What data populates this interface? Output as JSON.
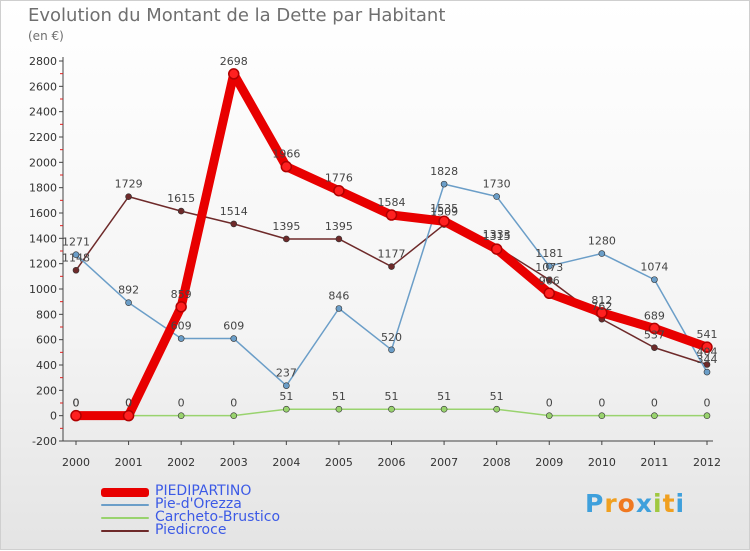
{
  "chart_data": {
    "type": "line",
    "title": "Evolution du Montant de la Dette par Habitant",
    "subtitle": "(en €)",
    "x": [
      "2000",
      "2001",
      "2002",
      "2003",
      "2004",
      "2005",
      "2006",
      "2007",
      "2008",
      "2009",
      "2010",
      "2011",
      "2012"
    ],
    "ylim": [
      -200,
      2800
    ],
    "yticks": [
      -200,
      0,
      200,
      400,
      600,
      800,
      1000,
      1200,
      1400,
      1600,
      1800,
      2000,
      2200,
      2400,
      2600,
      2800
    ],
    "grid": false,
    "legend_position": "bottom-left",
    "series": [
      {
        "name": "PIEDIPARTINO",
        "color": "#e80000",
        "values": [
          0,
          0,
          859,
          2698,
          1966,
          1776,
          1584,
          1535,
          1315,
          966,
          812,
          689,
          541
        ],
        "labels": [
          "0",
          "0",
          "859",
          "2698",
          "1966",
          "1776",
          "1584",
          "1535",
          "1315",
          "966",
          "812",
          "689",
          "541"
        ]
      },
      {
        "name": "Pie-d'Orezza",
        "color": "#6b9ec8",
        "values": [
          1271,
          892,
          609,
          609,
          237,
          846,
          520,
          1828,
          1730,
          1181,
          1280,
          1074,
          344
        ],
        "labels": [
          "1271",
          "892",
          "609",
          "609",
          "237",
          "846",
          "520",
          "1828",
          "1730",
          "1181",
          "1280",
          "1074",
          "344"
        ]
      },
      {
        "name": "Carcheto-Brustico",
        "color": "#99d36e",
        "values": [
          0,
          0,
          0,
          0,
          51,
          51,
          51,
          51,
          51,
          0,
          0,
          0,
          0
        ],
        "labels": [
          "0",
          "0",
          "0",
          "0",
          "51",
          "51",
          "51",
          "51",
          "51",
          "0",
          "0",
          "0",
          "0"
        ]
      },
      {
        "name": "Piedicroce",
        "color": "#6e2a2a",
        "values": [
          1148,
          1729,
          1615,
          1514,
          1395,
          1395,
          1177,
          1509,
          1333,
          1073,
          762,
          537,
          404
        ],
        "labels": [
          "1148",
          "1729",
          "1615",
          "1514",
          "1395",
          "1395",
          "1177",
          "1509",
          "1333",
          "1073",
          "762",
          "537",
          "404"
        ]
      }
    ]
  },
  "logo": {
    "letters": [
      "P",
      "r",
      "o",
      "x",
      "i",
      "t",
      "i"
    ],
    "colors": [
      "#3fa0dc",
      "#f0a020",
      "#f07820",
      "#3fa0dc",
      "#a0c840",
      "#f0a020",
      "#3fa0dc"
    ]
  }
}
